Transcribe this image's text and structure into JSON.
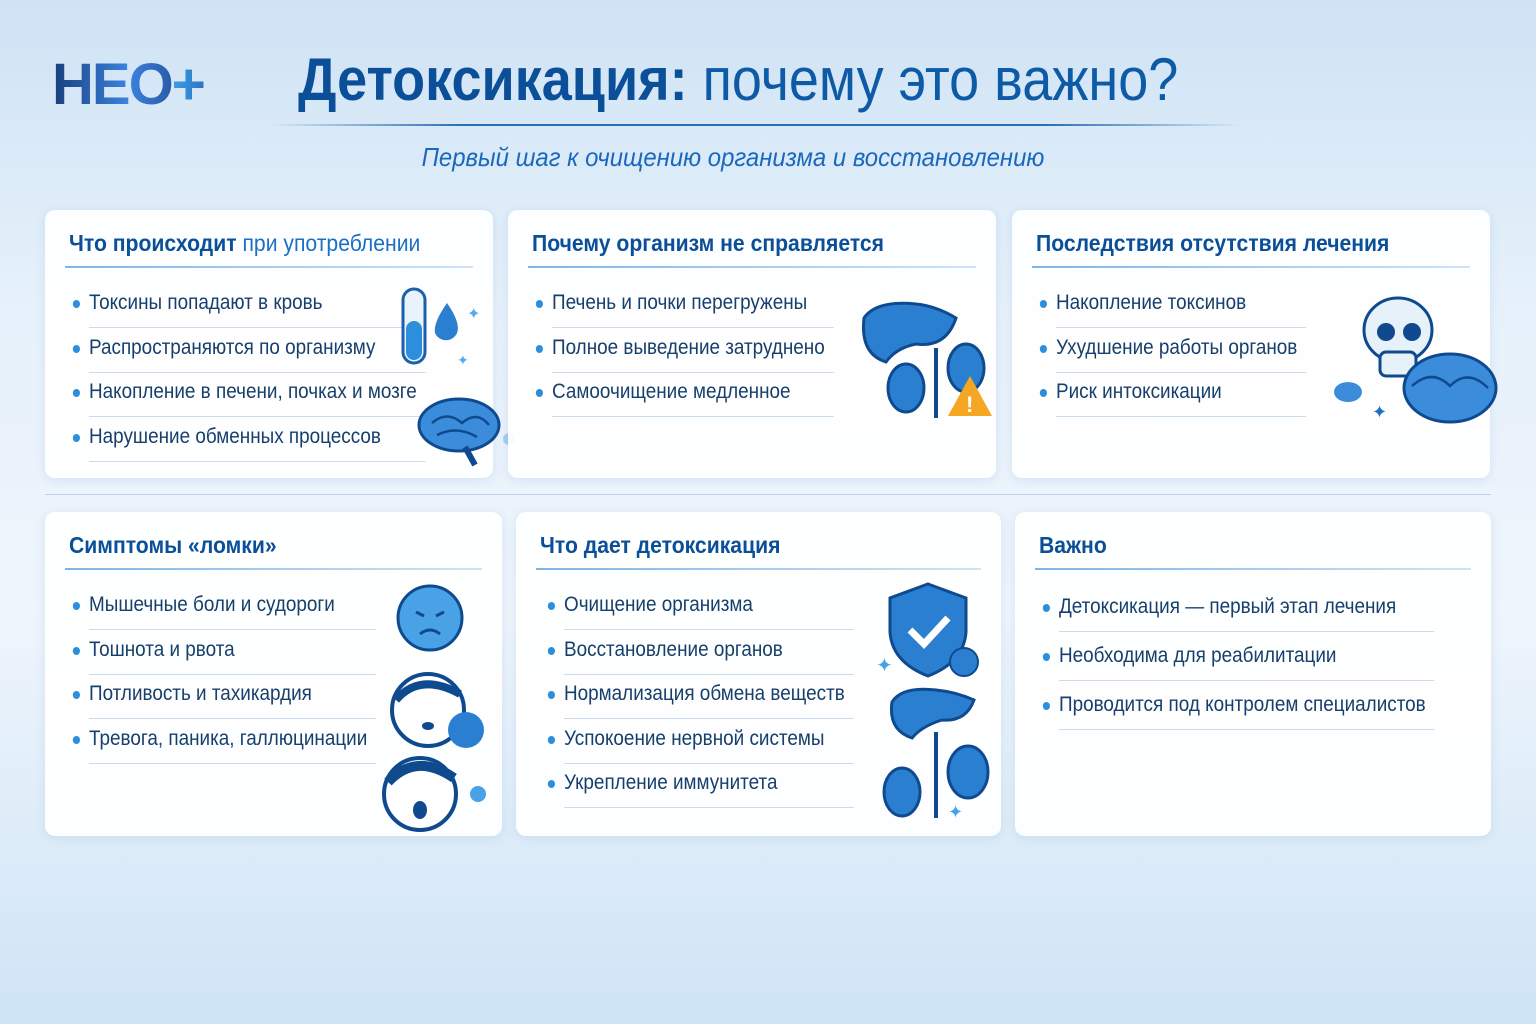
{
  "logo": {
    "text": "НЕО",
    "plus": "+"
  },
  "header": {
    "title_bold": "Детоксикация:",
    "title_rest": " почему это важно?",
    "subtitle": "Первый шаг к очищению организма и восстановлению"
  },
  "cards": [
    {
      "title_bold": "Что происходит",
      "title_rest": " при употреблении",
      "items": [
        "Токсины попадают в кровь",
        "Распространяются по организму",
        "Накопление в печени, почках и мозге",
        "Нарушение обменных процессов"
      ]
    },
    {
      "title_bold": "Почему организм не справляется",
      "title_rest": "",
      "items": [
        "Печень и почки перегружены",
        "Полное выведение затруднено",
        "Самоочищение медленное"
      ]
    },
    {
      "title_bold": "Последствия отсутствия лечения",
      "title_rest": "",
      "items": [
        "Накопление токсинов",
        "Ухудшение работы органов",
        "Риск интоксикации"
      ]
    },
    {
      "title_bold": "Симптомы «ломки»",
      "title_rest": "",
      "items": [
        "Мышечные боли и судороги",
        "Тошнота и рвота",
        "Потливость и тахикардия",
        "Тревога, паника, галлюцинации"
      ]
    },
    {
      "title_bold": "Что дает детоксикация",
      "title_rest": "",
      "items": [
        "Очищение организма",
        "Восстановление органов",
        "Нормализация обмена веществ",
        "Успокоение нервной системы",
        "Укрепление иммунитета"
      ]
    },
    {
      "title_bold": "Важно",
      "title_rest": "",
      "items": [
        "Детоксикация — первый этап лечения",
        "Необходима для реабилитации",
        "Проводится под контролем специалистов"
      ]
    }
  ],
  "colors": {
    "primary": "#0b4f98",
    "accent": "#2d8fdc",
    "warning": "#f5a623"
  }
}
